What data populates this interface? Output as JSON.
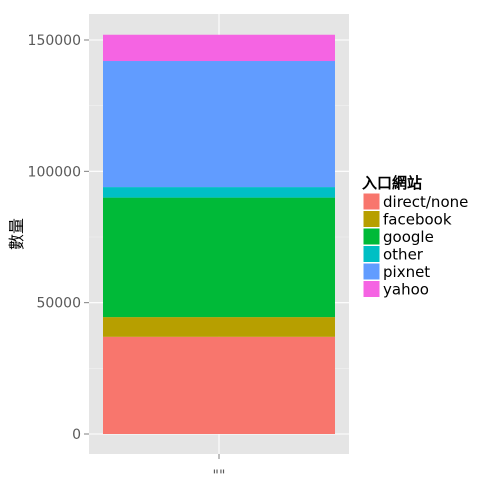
{
  "chart_data": {
    "type": "bar",
    "stacked": true,
    "categories": [
      "\"\""
    ],
    "xlabel": "",
    "ylabel": "數量",
    "ylim": [
      0,
      157000
    ],
    "yticks": [
      0,
      50000,
      100000,
      150000
    ],
    "ytick_labels": [
      "0",
      "50000",
      "100000",
      "150000"
    ],
    "grid": true,
    "legend": {
      "title": "入口網站",
      "placement": "right"
    },
    "series": [
      {
        "name": "direct/none",
        "color": "#F8766D",
        "values": [
          37000
        ]
      },
      {
        "name": "facebook",
        "color": "#B79F00",
        "values": [
          7500
        ]
      },
      {
        "name": "google",
        "color": "#00BA38",
        "values": [
          45500
        ]
      },
      {
        "name": "other",
        "color": "#00BFC4",
        "values": [
          4000
        ]
      },
      {
        "name": "pixnet",
        "color": "#619CFF",
        "values": [
          48000
        ]
      },
      {
        "name": "yahoo",
        "color": "#F564E3",
        "values": [
          10000
        ]
      }
    ]
  }
}
